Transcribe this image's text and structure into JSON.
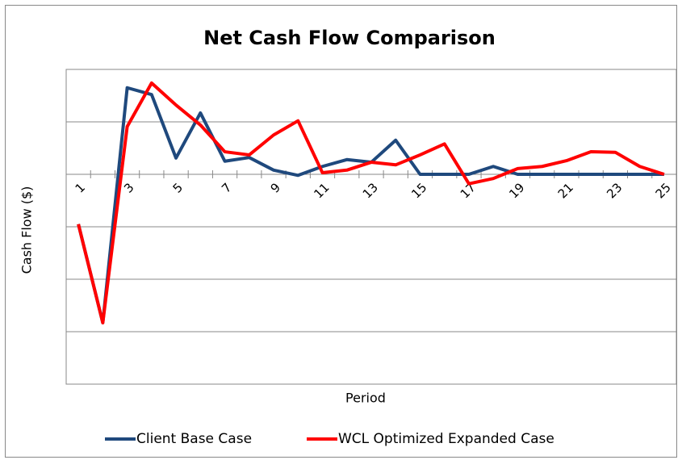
{
  "chart_data": {
    "type": "line",
    "title": "Net Cash Flow Comparison",
    "x_label": "Period",
    "y_label": "Cash Flow ($)",
    "categories": [
      "1",
      null,
      "3",
      null,
      "5",
      null,
      "7",
      null,
      "9",
      null,
      "11",
      null,
      "13",
      null,
      "15",
      null,
      "17",
      null,
      "19",
      null,
      "21",
      null,
      "23",
      null,
      "25"
    ],
    "series": [
      {
        "name": "Client Base Case",
        "color": "#1f497d",
        "values": [
          -0.95,
          -2.83,
          1.65,
          1.52,
          0.31,
          1.17,
          0.25,
          0.32,
          0.08,
          -0.02,
          0.15,
          0.28,
          0.23,
          0.65,
          0,
          0,
          0,
          0.15,
          0,
          0,
          0,
          0,
          0,
          0,
          0
        ]
      },
      {
        "name": "WCL Optimized Expanded Case",
        "color": "#ff0000",
        "values": [
          -0.95,
          -2.83,
          0.91,
          1.74,
          1.32,
          0.94,
          0.43,
          0.37,
          0.75,
          1.02,
          0.03,
          0.08,
          0.23,
          0.18,
          0.37,
          0.58,
          -0.18,
          -0.08,
          0.11,
          0.15,
          0.26,
          0.43,
          0.42,
          0.15,
          0
        ]
      }
    ],
    "ylim": [
      -4,
      2
    ],
    "yticks": [
      -4,
      -3,
      -2,
      -1,
      0,
      1,
      2
    ],
    "grid": true,
    "legend": "bottom"
  }
}
